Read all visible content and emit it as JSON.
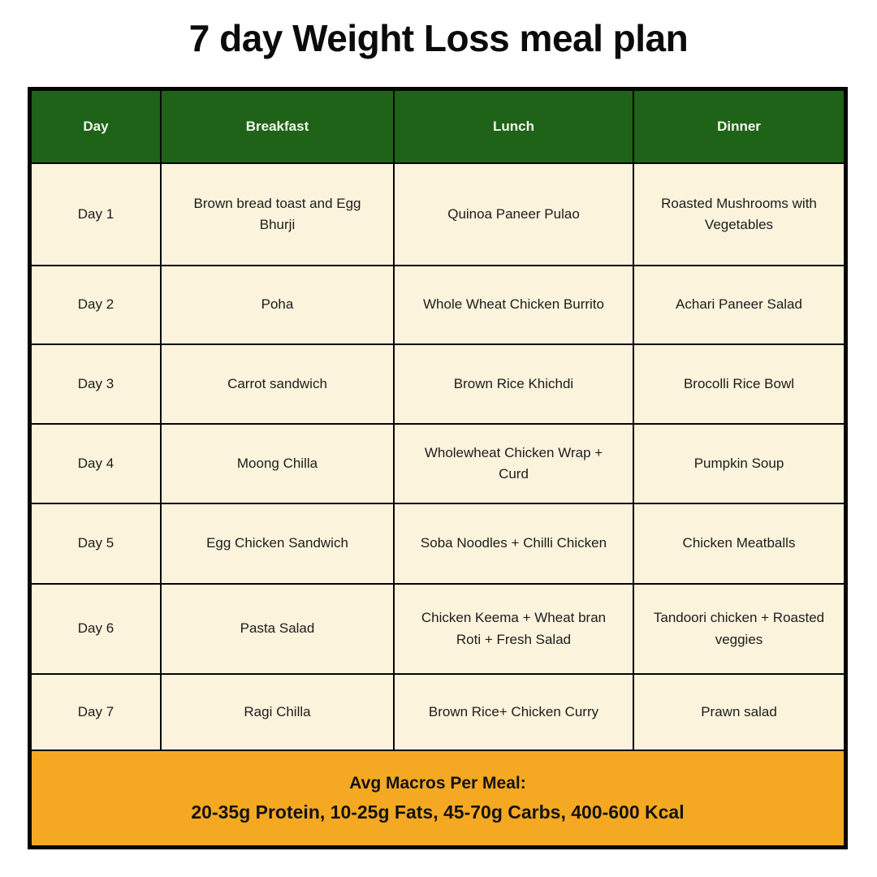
{
  "title": "7 day Weight Loss meal plan",
  "colors": {
    "header_bg": "#1f6318",
    "header_text": "#f3f6ec",
    "row_bg": "#fcf3dd",
    "body_text": "#1c1c1c",
    "footer_bg": "#f5a922",
    "border": "#050505",
    "page_bg": "#ffffff"
  },
  "table": {
    "columns": [
      "Day",
      "Breakfast",
      "Lunch",
      "Dinner"
    ],
    "rows": [
      {
        "day": "Day 1",
        "breakfast": "Brown bread toast and Egg Bhurji",
        "lunch": "Quinoa Paneer Pulao",
        "dinner": "Roasted Mushrooms with Vegetables"
      },
      {
        "day": "Day 2",
        "breakfast": "Poha",
        "lunch": "Whole Wheat Chicken Burrito",
        "dinner": "Achari Paneer Salad"
      },
      {
        "day": "Day 3",
        "breakfast": "Carrot sandwich",
        "lunch": "Brown Rice Khichdi",
        "dinner": "Brocolli Rice Bowl"
      },
      {
        "day": "Day 4",
        "breakfast": "Moong Chilla",
        "lunch": "Wholewheat Chicken Wrap + Curd",
        "dinner": "Pumpkin Soup"
      },
      {
        "day": "Day 5",
        "breakfast": "Egg Chicken Sandwich",
        "lunch": "Soba Noodles + Chilli Chicken",
        "dinner": "Chicken Meatballs"
      },
      {
        "day": "Day 6",
        "breakfast": "Pasta Salad",
        "lunch": "Chicken Keema + Wheat bran Roti + Fresh Salad",
        "dinner": "Tandoori chicken  + Roasted veggies"
      },
      {
        "day": "Day 7",
        "breakfast": "Ragi Chilla",
        "lunch": "Brown Rice+ Chicken Curry",
        "dinner": "Prawn salad"
      }
    ]
  },
  "footer": {
    "heading": "Avg Macros Per Meal:",
    "details": "20-35g Protein, 10-25g Fats, 45-70g Carbs, 400-600 Kcal"
  }
}
